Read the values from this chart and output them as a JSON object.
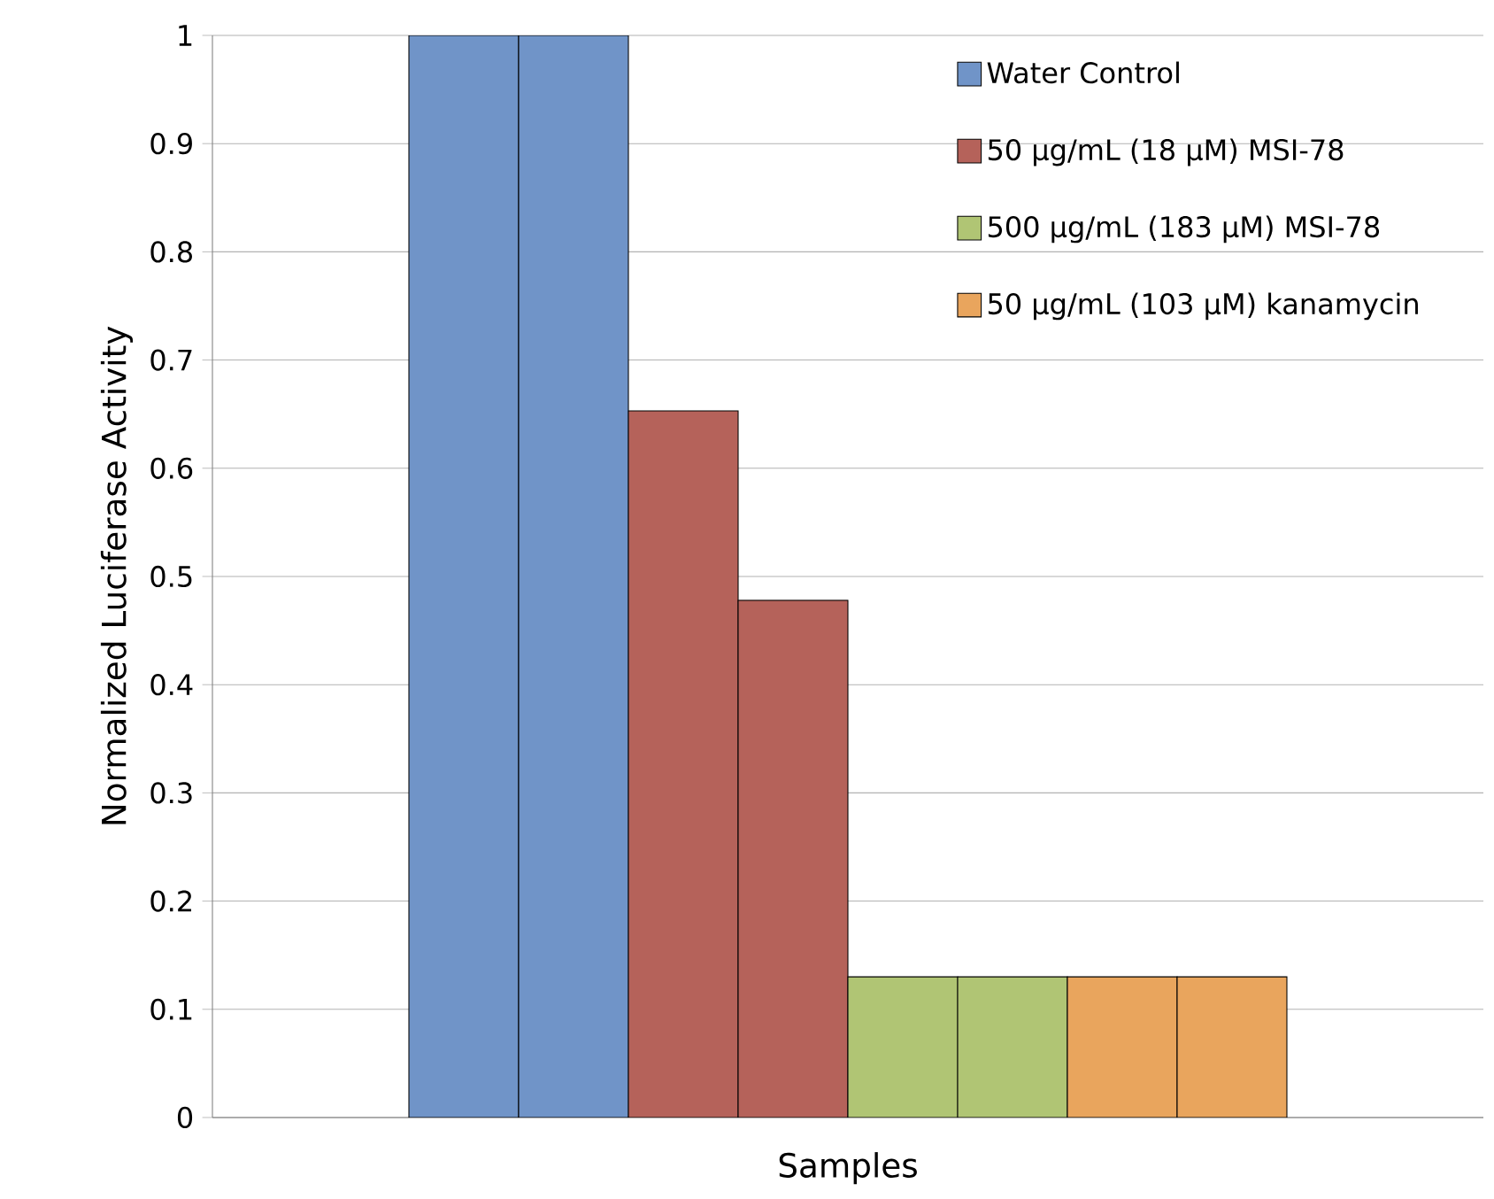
{
  "chart_data": {
    "type": "bar",
    "xlabel": "Samples",
    "ylabel": "Normalized Luciferase Activity",
    "categories": [
      null
    ],
    "series": [
      {
        "name": "Water Control",
        "color": "#7094c8",
        "values": [
          1
        ]
      },
      {
        "color": "#7094c8",
        "values": [
          1
        ]
      },
      {
        "name": "50 μg/mL (18 μM) MSI-78",
        "color": "#b5625a",
        "values": [
          0.653
        ]
      },
      {
        "color": "#b5625a",
        "values": [
          0.478
        ]
      },
      {
        "name": "500 μg/mL (183 μM) MSI-78",
        "color": "#b0c574",
        "values": [
          0.13
        ]
      },
      {
        "color": "#b0c574",
        "values": [
          0.13
        ]
      },
      {
        "name": "50 μg/mL (103 μM) kanamycin",
        "color": "#e9a55d",
        "values": [
          0.13
        ]
      },
      {
        "color": "#e9a55d",
        "values": [
          0.13
        ]
      }
    ],
    "ylim": [
      0,
      1
    ],
    "yticks": [
      0,
      0.1,
      0.2,
      0.3,
      0.4,
      0.5,
      0.6,
      0.7,
      0.8,
      0.9,
      1
    ],
    "grid": "y",
    "legend": "top right"
  }
}
